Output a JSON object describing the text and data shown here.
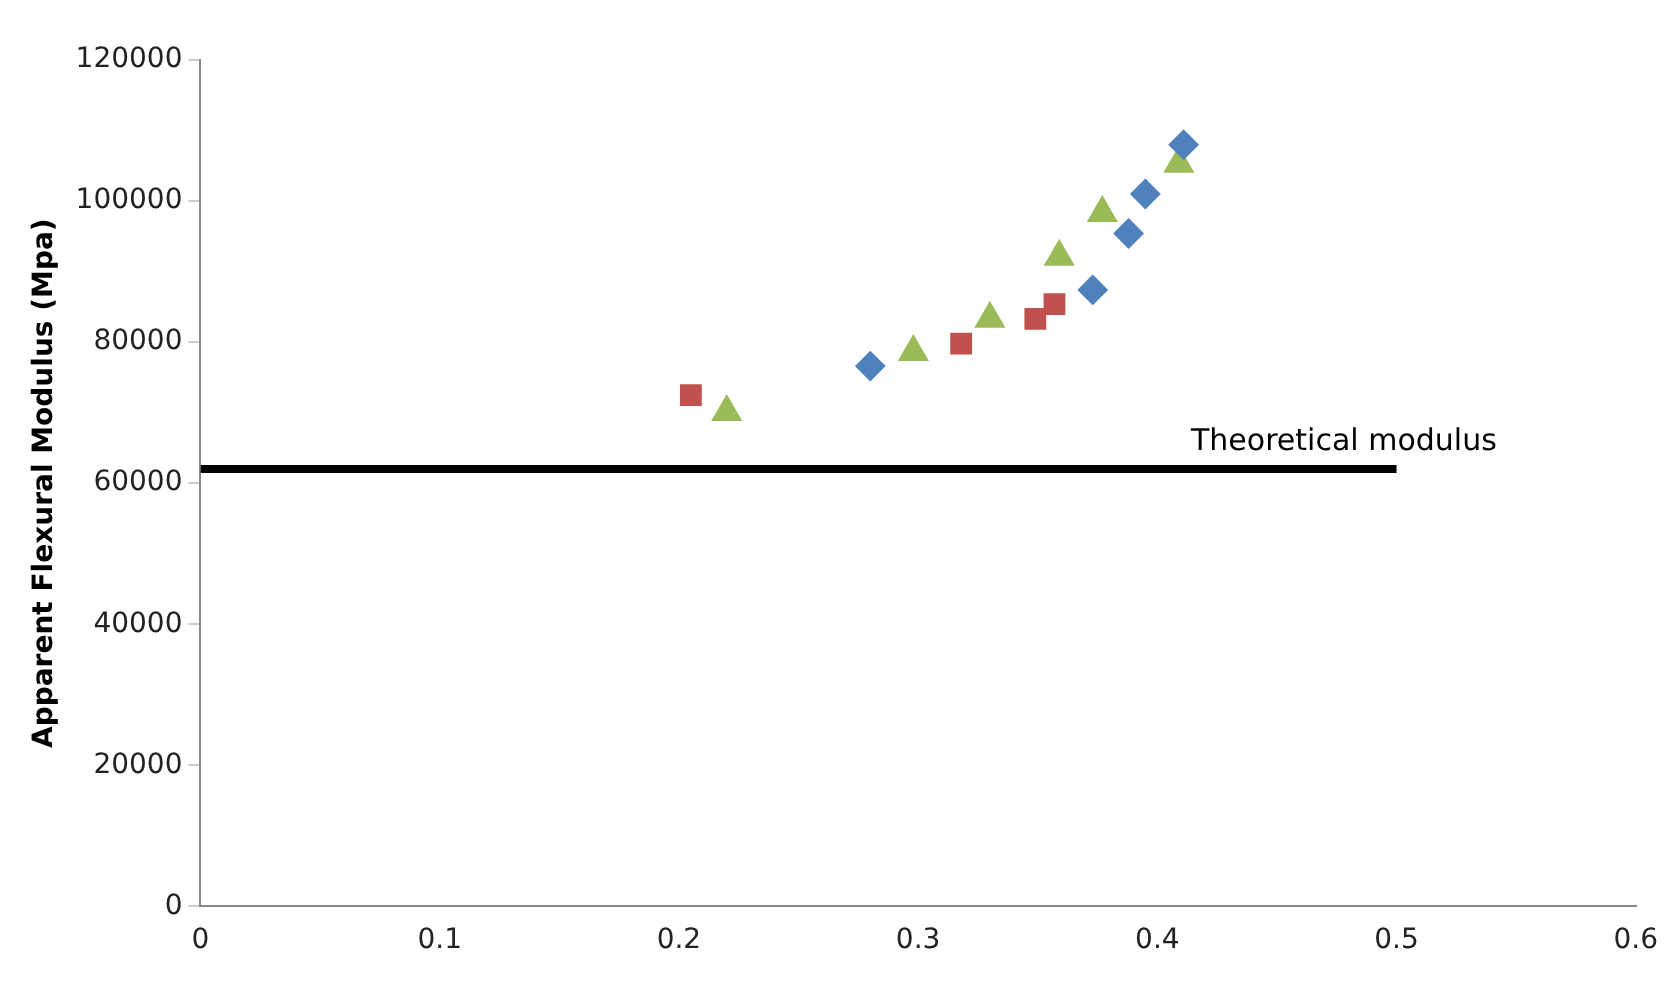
{
  "chart_data": {
    "type": "scatter",
    "ylabel": "Apparent Flexural Modulus (Mpa)",
    "xlim": [
      0,
      0.6
    ],
    "xticks": [
      0,
      0.1,
      0.2,
      0.3,
      0.4,
      0.5,
      0.6
    ],
    "ylim": [
      0,
      120000
    ],
    "yticks": [
      0,
      20000,
      40000,
      60000,
      80000,
      100000,
      120000
    ],
    "grid": false,
    "legend": false,
    "series": [
      {
        "color": "#4f81bd",
        "marker": "diamond",
        "x": [
          0.28,
          0.373,
          0.388,
          0.395,
          0.411
        ],
        "values": [
          76600,
          87400,
          95400,
          101000,
          108000
        ]
      },
      {
        "color": "#c0504d",
        "marker": "square",
        "x": [
          0.205,
          0.318,
          0.349,
          0.357
        ],
        "values": [
          72500,
          79800,
          83300,
          85400
        ]
      },
      {
        "color": "#9bbb59",
        "marker": "triangle",
        "x": [
          0.22,
          0.298,
          0.33,
          0.359,
          0.377,
          0.409
        ],
        "values": [
          70100,
          78600,
          83300,
          92100,
          98300,
          105300
        ]
      },
      {
        "type": "line",
        "color": "#000000",
        "marker": "none",
        "x": [
          0,
          0.5
        ],
        "values": [
          62000,
          62000
        ]
      }
    ],
    "annotations": [
      {
        "text": "Theoretical modulus",
        "x": 0.478,
        "y": 62000
      }
    ]
  }
}
